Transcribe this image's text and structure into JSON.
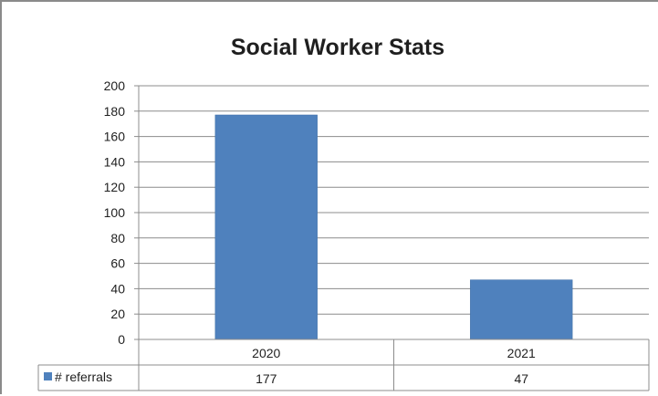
{
  "chart_data": {
    "type": "bar",
    "title": "Social Worker Stats",
    "categories": [
      "2020",
      "2021"
    ],
    "series": [
      {
        "name": "# referrals",
        "values": [
          177,
          47
        ],
        "color": "#4f81bd"
      }
    ],
    "ylim": [
      0,
      200
    ],
    "yticks": [
      0,
      20,
      40,
      60,
      80,
      100,
      120,
      140,
      160,
      180,
      200
    ],
    "grid": true,
    "legend": "data-table-left",
    "data_table": true
  }
}
